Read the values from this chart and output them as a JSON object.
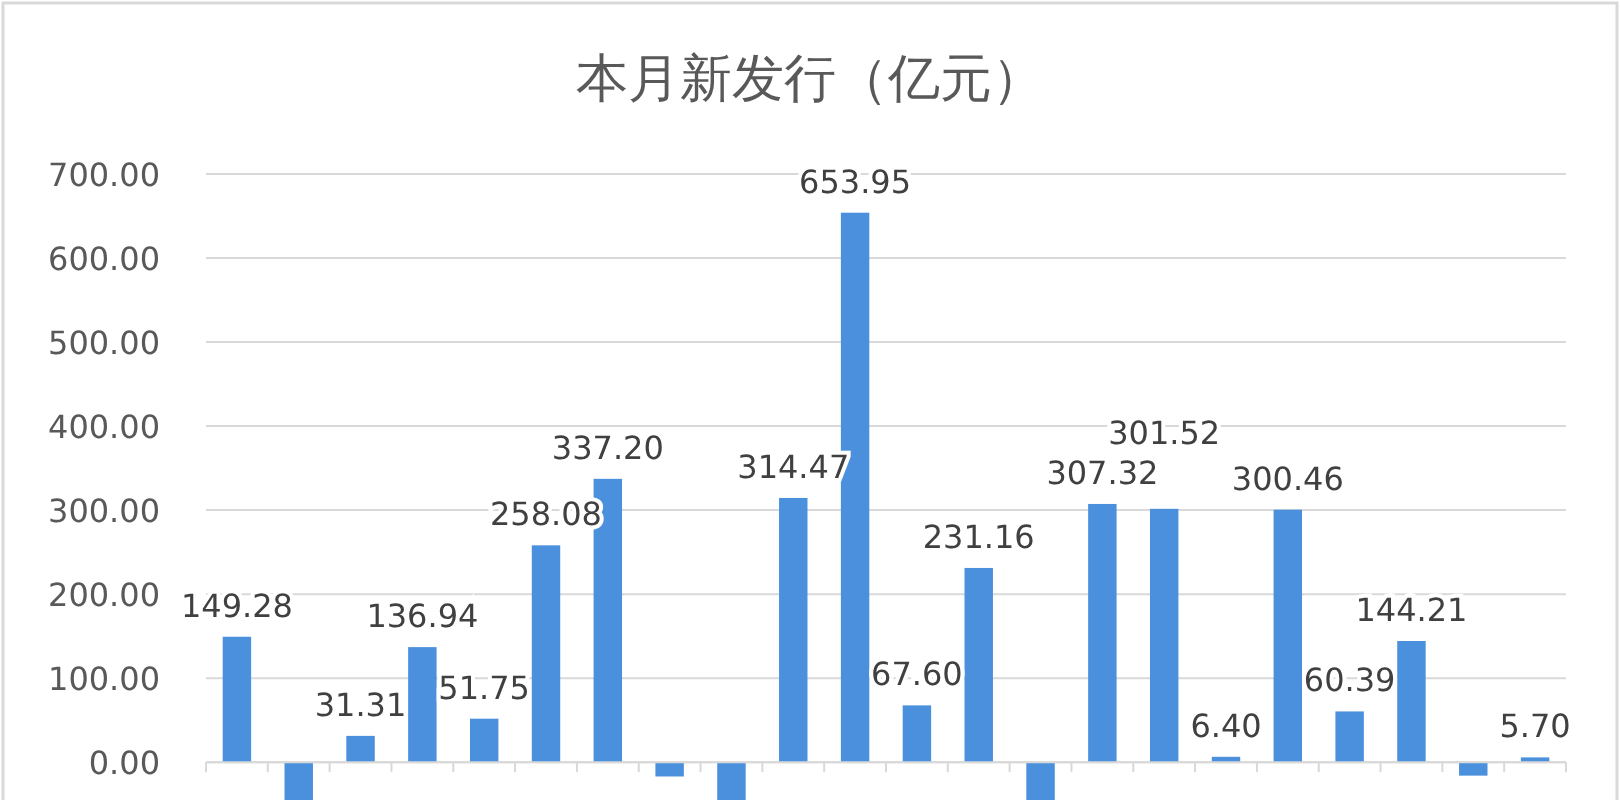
{
  "chart_data": {
    "type": "bar",
    "title": "本月新发行（亿元）",
    "categories": [
      null,
      null,
      null,
      null,
      null,
      null,
      null,
      null,
      null,
      null,
      null,
      null,
      null,
      null,
      null,
      null,
      null,
      null,
      null,
      null,
      null,
      null
    ],
    "values": [
      149.28,
      -45,
      31.31,
      136.94,
      51.75,
      258.08,
      337.2,
      -17,
      -45,
      314.47,
      653.95,
      67.6,
      231.16,
      -45,
      307.32,
      301.52,
      6.4,
      300.46,
      60.39,
      144.21,
      -16,
      5.7
    ],
    "value_labels": [
      "149.28",
      null,
      "31.31",
      "136.94",
      "51.75",
      "258.08",
      "337.20",
      null,
      null,
      "314.47",
      "653.95",
      "67.60",
      "231.16",
      null,
      "307.32",
      "301.52",
      "6.40",
      "300.46",
      "60.39",
      "144.21",
      null,
      "5.70"
    ],
    "color": "#4a90dc",
    "ylim": [
      -45,
      700
    ],
    "yticks": [
      {
        "value": 0,
        "label": "0.00"
      },
      {
        "value": 100,
        "label": "100.00"
      },
      {
        "value": 200,
        "label": "200.00"
      },
      {
        "value": 300,
        "label": "300.00"
      },
      {
        "value": 400,
        "label": "400.00"
      },
      {
        "value": 500,
        "label": "500.00"
      },
      {
        "value": 600,
        "label": "600.00"
      },
      {
        "value": 700,
        "label": "700.00"
      }
    ],
    "grid": "y"
  }
}
